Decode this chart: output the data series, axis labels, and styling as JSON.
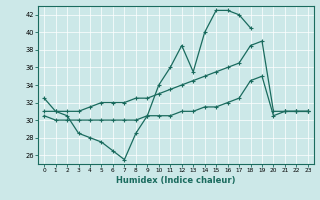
{
  "xlabel": "Humidex (Indice chaleur)",
  "background_color": "#cce8e8",
  "grid_color": "#b0d0d0",
  "line_color": "#1a6b5e",
  "xlim": [
    -0.5,
    23.5
  ],
  "ylim": [
    25,
    43
  ],
  "yticks": [
    26,
    28,
    30,
    32,
    34,
    36,
    38,
    40,
    42
  ],
  "xticks": [
    0,
    1,
    2,
    3,
    4,
    5,
    6,
    7,
    8,
    9,
    10,
    11,
    12,
    13,
    14,
    15,
    16,
    17,
    18,
    19,
    20,
    21,
    22,
    23
  ],
  "line1_y": [
    32.5,
    31.0,
    30.5,
    28.5,
    28.0,
    27.5,
    26.5,
    25.5,
    28.5,
    30.5,
    34.0,
    36.0,
    38.5,
    35.5,
    40.0,
    42.5,
    42.5,
    42.0,
    40.5,
    null,
    null,
    31.0,
    31.0,
    31.0
  ],
  "line2_y": [
    31.0,
    31.0,
    31.0,
    31.0,
    31.5,
    32.0,
    32.0,
    32.0,
    32.5,
    32.5,
    33.0,
    33.5,
    34.0,
    34.5,
    35.0,
    35.5,
    36.0,
    36.5,
    38.5,
    39.0,
    31.0,
    31.0,
    31.0,
    31.0
  ],
  "line3_y": [
    30.5,
    30.0,
    30.0,
    30.0,
    30.0,
    30.0,
    30.0,
    30.0,
    30.0,
    30.5,
    30.5,
    30.5,
    31.0,
    31.0,
    31.5,
    31.5,
    32.0,
    32.5,
    34.5,
    35.0,
    30.5,
    31.0,
    31.0,
    31.0
  ]
}
